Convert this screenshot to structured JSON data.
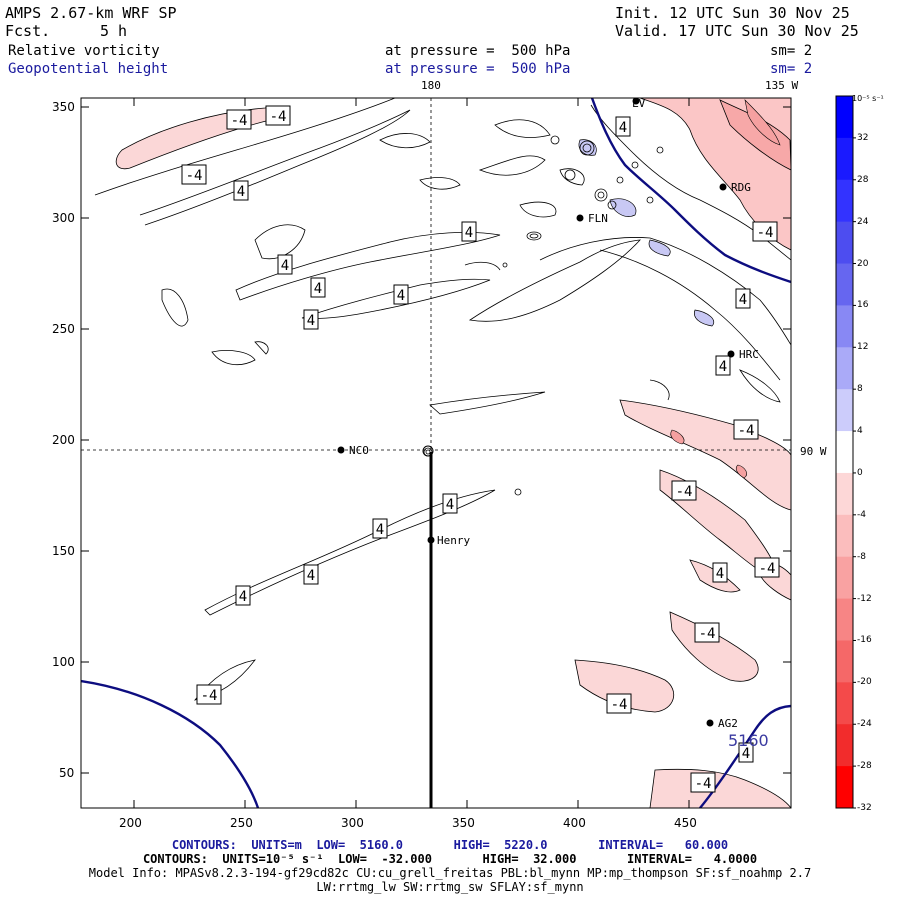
{
  "header": {
    "model": "AMPS 2.67-km WRF SP",
    "forecast_label": "Fcst.",
    "forecast_value": "5 h",
    "init": "Init. 12 UTC Sun 30 Nov 25",
    "valid": "Valid. 17 UTC Sun 30 Nov 25",
    "field1": "Relative vorticity",
    "field2": "Geopotential height",
    "pressure1": "at pressure =  500 hPa",
    "pressure2": "at pressure =  500 hPa",
    "sm1": "sm= 2",
    "sm2": "sm= 2"
  },
  "map_labels": {
    "lon_180": "180",
    "lon_135w": "135 W",
    "lon_90w": "90 W",
    "height_contour": "5160",
    "vort_pos": "4",
    "vort_neg": "-4",
    "stations": [
      "NCO",
      "Henry",
      "FLN",
      "RDG",
      "HRC",
      "AG2",
      "LV"
    ]
  },
  "axes": {
    "x_ticks": [
      "200",
      "250",
      "300",
      "350",
      "400",
      "450"
    ],
    "y_ticks": [
      "350",
      "300",
      "250",
      "200",
      "150",
      "100",
      "50"
    ]
  },
  "colorbar": {
    "units": "10⁻⁵ s⁻¹",
    "labels": [
      "32",
      "28",
      "24",
      "20",
      "16",
      "12",
      "8",
      "4",
      "0",
      "-4",
      "-8",
      "-12",
      "-16",
      "-20",
      "-24",
      "-28",
      "-32"
    ],
    "colors": [
      "#0000ff",
      "#1a1aff",
      "#3333ff",
      "#4d4df0",
      "#6666f0",
      "#8888f4",
      "#aaaaf8",
      "#ccccfb",
      "#ffffff",
      "#fdd7d7",
      "#fbbdbd",
      "#f9a2a2",
      "#f78585",
      "#f56868",
      "#f44a4a",
      "#f22c2c",
      "#ff0000"
    ]
  },
  "footer": {
    "line1": "CONTOURS:  UNITS=m  LOW=  5160.0       HIGH=  5220.0       INTERVAL=   60.000",
    "line2": "CONTOURS:  UNITS=10⁻⁵ s⁻¹  LOW=  -32.000       HIGH=  32.000       INTERVAL=   4.0000",
    "line3": "Model Info: MPASv8.2.3-194-gf29cd82c CU:cu_grell_freitas PBL:bl_mynn MP:mp_thompson SF:sf_noahmp 2.7",
    "line4": "LW:rrtmg_lw SW:rrtmg_sw SFLAY:sf_mynn"
  }
}
